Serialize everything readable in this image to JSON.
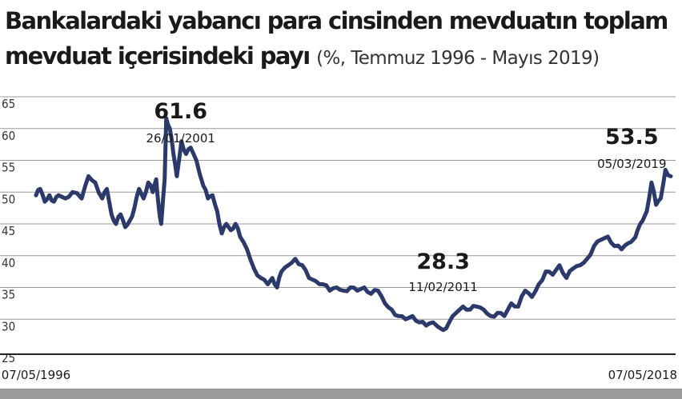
{
  "title": {
    "line1": "Bankalardaki yabancı para cinsinden mevduatın toplam",
    "line2": "mevduat içerisindeki payı",
    "subtitle": "(%, Temmuz 1996 - Mayıs 2019)"
  },
  "colors": {
    "line": "#2b3a6b",
    "grid": "#9a9a9a",
    "axis": "#222222",
    "bar": "#9a9a9a"
  },
  "chart_data": {
    "type": "line",
    "ylim": [
      25,
      65
    ],
    "xlim": [
      "1996-05-07",
      "2019-05-15"
    ],
    "yticks": [
      "65",
      "60",
      "55",
      "50",
      "45",
      "40",
      "35",
      "30",
      "25"
    ],
    "ytick_values": [
      65,
      60,
      55,
      50,
      45,
      40,
      35,
      30,
      25
    ],
    "xtick_labels": [
      {
        "label": "07/05/1996",
        "date": "1996-05-07"
      },
      {
        "label": "07/05/2018",
        "date": "2018-05-07"
      }
    ],
    "grid": true,
    "series": [
      {
        "points": [
          [
            "1996-05-07",
            49.5
          ],
          [
            "1996-07-01",
            50.5
          ],
          [
            "1996-09-01",
            48.5
          ],
          [
            "1996-11-01",
            49.5
          ],
          [
            "1997-01-01",
            48.5
          ],
          [
            "1997-03-01",
            49.5
          ],
          [
            "1997-06-01",
            49.0
          ],
          [
            "1997-09-01",
            50.0
          ],
          [
            "1998-01-01",
            49.0
          ],
          [
            "1998-04-01",
            52.5
          ],
          [
            "1998-07-01",
            51.5
          ],
          [
            "1998-10-01",
            49.0
          ],
          [
            "1998-12-01",
            50.5
          ],
          [
            "1999-02-01",
            46.5
          ],
          [
            "1999-04-01",
            45.0
          ],
          [
            "1999-06-01",
            46.5
          ],
          [
            "1999-08-01",
            44.5
          ],
          [
            "1999-10-01",
            45.5
          ],
          [
            "1999-12-01",
            47.5
          ],
          [
            "2000-02-01",
            50.5
          ],
          [
            "2000-04-01",
            49.0
          ],
          [
            "2000-06-01",
            51.5
          ],
          [
            "2000-08-01",
            50.0
          ],
          [
            "2000-09-15",
            52.0
          ],
          [
            "2000-10-15",
            48.0
          ],
          [
            "2000-11-20",
            45.0
          ],
          [
            "2001-01-05",
            52.0
          ],
          [
            "2001-01-26",
            61.6
          ],
          [
            "2001-03-15",
            60.0
          ],
          [
            "2001-05-01",
            56.0
          ],
          [
            "2001-06-15",
            52.5
          ],
          [
            "2001-08-15",
            58.0
          ],
          [
            "2001-10-15",
            56.0
          ],
          [
            "2001-12-15",
            57.0
          ],
          [
            "2002-03-01",
            55.0
          ],
          [
            "2002-06-01",
            51.0
          ],
          [
            "2002-08-01",
            49.0
          ],
          [
            "2002-10-01",
            49.5
          ],
          [
            "2002-12-01",
            47.0
          ],
          [
            "2003-02-01",
            43.5
          ],
          [
            "2003-04-01",
            45.0
          ],
          [
            "2003-06-01",
            44.0
          ],
          [
            "2003-08-01",
            45.0
          ],
          [
            "2003-10-01",
            43.0
          ],
          [
            "2004-01-01",
            41.0
          ],
          [
            "2004-04-01",
            38.0
          ],
          [
            "2004-07-01",
            36.5
          ],
          [
            "2004-10-01",
            35.5
          ],
          [
            "2004-12-01",
            36.5
          ],
          [
            "2005-02-01",
            35.0
          ],
          [
            "2005-04-01",
            37.5
          ],
          [
            "2005-07-01",
            38.5
          ],
          [
            "2005-10-01",
            39.5
          ],
          [
            "2006-01-01",
            38.5
          ],
          [
            "2006-04-01",
            36.5
          ],
          [
            "2006-07-01",
            36.0
          ],
          [
            "2006-10-01",
            35.5
          ],
          [
            "2007-01-01",
            34.5
          ],
          [
            "2007-04-01",
            35.0
          ],
          [
            "2007-07-01",
            34.5
          ],
          [
            "2007-10-01",
            35.0
          ],
          [
            "2008-01-01",
            34.5
          ],
          [
            "2008-04-01",
            35.0
          ],
          [
            "2008-07-01",
            34.0
          ],
          [
            "2008-10-01",
            34.5
          ],
          [
            "2009-01-01",
            32.5
          ],
          [
            "2009-04-01",
            31.5
          ],
          [
            "2009-07-01",
            30.5
          ],
          [
            "2009-10-01",
            30.0
          ],
          [
            "2010-01-01",
            30.5
          ],
          [
            "2010-04-01",
            29.5
          ],
          [
            "2010-07-01",
            29.0
          ],
          [
            "2010-10-01",
            29.5
          ],
          [
            "2011-02-11",
            28.3
          ],
          [
            "2011-05-01",
            29.5
          ],
          [
            "2011-08-01",
            31.0
          ],
          [
            "2011-11-01",
            32.0
          ],
          [
            "2012-02-01",
            31.5
          ],
          [
            "2012-05-01",
            32.0
          ],
          [
            "2012-08-01",
            31.5
          ],
          [
            "2012-11-01",
            30.5
          ],
          [
            "2013-02-01",
            31.0
          ],
          [
            "2013-05-01",
            30.5
          ],
          [
            "2013-08-01",
            32.5
          ],
          [
            "2013-11-01",
            32.0
          ],
          [
            "2014-02-01",
            34.5
          ],
          [
            "2014-05-01",
            33.5
          ],
          [
            "2014-08-01",
            35.5
          ],
          [
            "2014-11-01",
            37.5
          ],
          [
            "2015-02-01",
            37.0
          ],
          [
            "2015-05-01",
            38.5
          ],
          [
            "2015-08-01",
            36.5
          ],
          [
            "2015-11-01",
            38.0
          ],
          [
            "2016-02-01",
            38.5
          ],
          [
            "2016-05-01",
            39.5
          ],
          [
            "2016-08-01",
            41.5
          ],
          [
            "2016-11-01",
            42.5
          ],
          [
            "2017-02-01",
            43.0
          ],
          [
            "2017-05-01",
            41.5
          ],
          [
            "2017-08-01",
            41.0
          ],
          [
            "2017-11-01",
            42.0
          ],
          [
            "2018-01-01",
            42.5
          ],
          [
            "2018-03-01",
            44.0
          ],
          [
            "2018-05-07",
            45.5
          ],
          [
            "2018-07-01",
            47.0
          ],
          [
            "2018-09-01",
            51.5
          ],
          [
            "2018-11-01",
            48.0
          ],
          [
            "2019-01-01",
            49.0
          ],
          [
            "2019-03-05",
            53.5
          ],
          [
            "2019-05-15",
            52.5
          ]
        ]
      }
    ],
    "annotations": [
      {
        "value": "61.6",
        "date": "26/01/2001",
        "at": [
          "2001-01-26",
          61.6
        ]
      },
      {
        "value": "28.3",
        "date": "11/02/2011",
        "at": [
          "2011-02-11",
          28.3
        ]
      },
      {
        "value": "53.5",
        "date": "05/03/2019",
        "at": [
          "2019-03-05",
          53.5
        ]
      }
    ]
  }
}
